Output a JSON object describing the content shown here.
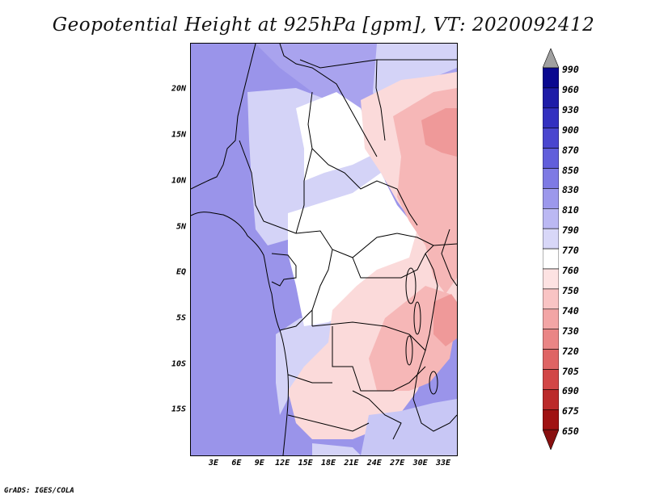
{
  "title": "Geopotential Height at 925hPa [gpm], VT: 2020092412",
  "credit": "GrADS: IGES/COLA",
  "map": {
    "lat_labels": [
      "20N",
      "15N",
      "10N",
      "5N",
      "EQ",
      "5S",
      "10S",
      "15S"
    ],
    "lon_labels": [
      "3E",
      "6E",
      "9E",
      "12E",
      "15E",
      "18E",
      "21E",
      "24E",
      "27E",
      "30E",
      "33E"
    ],
    "field_colors": {
      "ocean_west": "#9a94ea",
      "sahara": "#a9a3ee",
      "sahel_light": "#d4d3f7",
      "central_white": "#ffffff",
      "pink_low": "#fbdada",
      "pink_mid": "#f6b7b7",
      "red_low": "#ef9999",
      "south_blue": "#c8c7f5"
    }
  },
  "colorbar": {
    "labels": [
      "990",
      "960",
      "930",
      "900",
      "870",
      "850",
      "830",
      "810",
      "790",
      "770",
      "760",
      "750",
      "740",
      "730",
      "720",
      "705",
      "690",
      "675",
      "650"
    ],
    "colors": [
      "#a0a0a0",
      "#0a0890",
      "#1e1ca8",
      "#3330c0",
      "#4a46cf",
      "#615edb",
      "#7e7ae4",
      "#9c98ec",
      "#bbb8f3",
      "#d8d7f8",
      "#ffffff",
      "#fde2e2",
      "#f9c4c4",
      "#f3a5a5",
      "#ea8585",
      "#df6464",
      "#d24646",
      "#bb2a2a",
      "#a01212",
      "#881010"
    ]
  }
}
